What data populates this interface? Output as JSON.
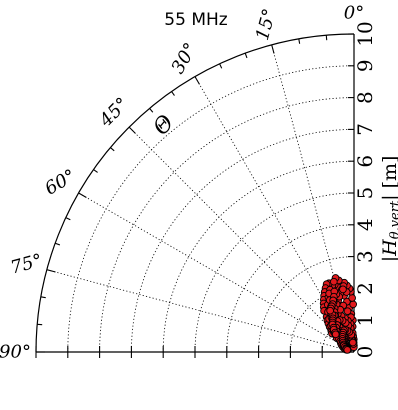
{
  "chart_data": {
    "type": "scatter",
    "projection": "polar-quadrant",
    "title": "55 MHz",
    "angular_axis": {
      "label": "Θ",
      "unit": "degrees",
      "range": [
        0,
        90
      ],
      "ticks": [
        0,
        15,
        30,
        45,
        60,
        75,
        90
      ],
      "tick_labels": [
        "0°",
        "15°",
        "30°",
        "45°",
        "60°",
        "75°",
        "90°"
      ],
      "minor_step": 5
    },
    "radial_axis": {
      "label_prefix": "|",
      "label_italic": "H",
      "label_subscript": "θ,vert",
      "label_suffix": "| [m]",
      "range": [
        0,
        10
      ],
      "ticks": [
        0,
        1,
        2,
        3,
        4,
        5,
        6,
        7,
        8,
        9,
        10
      ],
      "tick_labels": [
        "0",
        "1",
        "2",
        "3",
        "4",
        "5",
        "6",
        "7",
        "8",
        "9",
        "10"
      ]
    },
    "grid": true,
    "marker": {
      "color": "#e0191d",
      "edgecolor": "#000000"
    },
    "series": [
      {
        "points_theta_r": [
          [
            1,
            0.4
          ],
          [
            3,
            0.5
          ],
          [
            6,
            0.6
          ],
          [
            10,
            0.7
          ],
          [
            14,
            0.8
          ],
          [
            18,
            0.8
          ],
          [
            22,
            0.9
          ],
          [
            26,
            0.9
          ],
          [
            30,
            0.9
          ],
          [
            34,
            0.8
          ],
          [
            38,
            0.8
          ],
          [
            42,
            0.7
          ],
          [
            46,
            0.6
          ],
          [
            50,
            0.5
          ],
          [
            54,
            0.5
          ],
          [
            58,
            0.4
          ],
          [
            62,
            0.35
          ],
          [
            66,
            0.3
          ],
          [
            70,
            0.3
          ],
          [
            74,
            0.25
          ],
          [
            2,
            1.0
          ],
          [
            4,
            1.2
          ],
          [
            6,
            1.4
          ],
          [
            8,
            1.6
          ],
          [
            10,
            1.8
          ],
          [
            12,
            2.0
          ],
          [
            14,
            2.1
          ],
          [
            16,
            2.2
          ],
          [
            18,
            2.2
          ],
          [
            20,
            2.3
          ],
          [
            22,
            2.3
          ],
          [
            24,
            2.2
          ],
          [
            26,
            2.1
          ],
          [
            28,
            2.0
          ],
          [
            30,
            1.9
          ],
          [
            32,
            1.8
          ],
          [
            34,
            1.7
          ],
          [
            36,
            1.6
          ],
          [
            38,
            1.4
          ],
          [
            40,
            1.3
          ],
          [
            42,
            1.2
          ],
          [
            44,
            1.1
          ],
          [
            46,
            1.0
          ],
          [
            48,
            0.95
          ],
          [
            50,
            0.9
          ],
          [
            5,
            1.1
          ],
          [
            9,
            1.3
          ],
          [
            13,
            1.5
          ],
          [
            17,
            1.7
          ],
          [
            21,
            1.9
          ],
          [
            25,
            1.9
          ],
          [
            29,
            1.7
          ],
          [
            33,
            1.5
          ],
          [
            37,
            1.3
          ],
          [
            41,
            1.1
          ],
          [
            45,
            0.9
          ],
          [
            3,
            0.8
          ],
          [
            7,
            0.9
          ],
          [
            11,
            1.0
          ],
          [
            15,
            1.1
          ],
          [
            19,
            1.2
          ],
          [
            23,
            1.3
          ],
          [
            27,
            1.3
          ],
          [
            31,
            1.2
          ],
          [
            35,
            1.1
          ],
          [
            39,
            1.0
          ],
          [
            43,
            0.9
          ],
          [
            47,
            0.8
          ],
          [
            51,
            0.7
          ],
          [
            2,
            0.3
          ],
          [
            5,
            0.35
          ],
          [
            8,
            0.4
          ],
          [
            12,
            0.45
          ],
          [
            16,
            0.5
          ],
          [
            20,
            0.55
          ],
          [
            24,
            0.6
          ],
          [
            28,
            0.6
          ],
          [
            32,
            0.55
          ],
          [
            36,
            0.5
          ],
          [
            40,
            0.45
          ],
          [
            44,
            0.4
          ],
          [
            48,
            0.35
          ],
          [
            52,
            0.3
          ],
          [
            56,
            0.3
          ],
          [
            60,
            0.25
          ],
          [
            64,
            0.2
          ],
          [
            68,
            0.2
          ],
          [
            1,
            1.5
          ],
          [
            2,
            1.7
          ],
          [
            3,
            1.9
          ],
          [
            4,
            2.0
          ],
          [
            6,
            2.1
          ],
          [
            8,
            2.2
          ],
          [
            9,
            2.1
          ],
          [
            11,
            2.0
          ],
          [
            13,
            1.9
          ],
          [
            15,
            1.8
          ],
          [
            17,
            1.9
          ],
          [
            19,
            2.0
          ],
          [
            21,
            2.1
          ],
          [
            23,
            2.0
          ],
          [
            25,
            1.8
          ],
          [
            27,
            1.6
          ],
          [
            29,
            1.5
          ],
          [
            31,
            1.4
          ],
          [
            33,
            1.3
          ],
          [
            4,
            0.6
          ],
          [
            8,
            0.75
          ],
          [
            12,
            0.85
          ],
          [
            16,
            0.95
          ],
          [
            20,
            1.05
          ],
          [
            24,
            1.1
          ],
          [
            28,
            1.1
          ],
          [
            32,
            1.0
          ],
          [
            36,
            0.95
          ],
          [
            40,
            0.85
          ],
          [
            44,
            0.75
          ],
          [
            48,
            0.65
          ],
          [
            52,
            0.55
          ],
          [
            56,
            0.5
          ],
          [
            60,
            0.45
          ],
          [
            64,
            0.4
          ],
          [
            68,
            0.35
          ],
          [
            72,
            0.3
          ],
          [
            18,
            1.4
          ],
          [
            20,
            1.6
          ],
          [
            22,
            1.7
          ],
          [
            24,
            1.5
          ],
          [
            26,
            1.4
          ],
          [
            28,
            1.3
          ],
          [
            30,
            1.35
          ],
          [
            32,
            1.25
          ],
          [
            34,
            1.2
          ],
          [
            36,
            1.15
          ],
          [
            38,
            1.1
          ],
          [
            40,
            1.0
          ],
          [
            42,
            0.95
          ],
          [
            44,
            0.85
          ],
          [
            46,
            0.8
          ],
          [
            7,
            1.9
          ],
          [
            10,
            2.0
          ],
          [
            12,
            2.3
          ],
          [
            14,
            2.4
          ],
          [
            16,
            2.3
          ],
          [
            18,
            2.0
          ],
          [
            20,
            1.85
          ],
          [
            22,
            1.75
          ],
          [
            24,
            1.65
          ],
          [
            26,
            1.6
          ],
          [
            28,
            1.55
          ],
          [
            30,
            1.5
          ],
          [
            1,
            0.2
          ],
          [
            2,
            0.15
          ],
          [
            4,
            0.25
          ],
          [
            7,
            0.3
          ],
          [
            9,
            0.55
          ],
          [
            13,
            0.65
          ],
          [
            17,
            0.7
          ],
          [
            21,
            0.75
          ],
          [
            25,
            0.75
          ],
          [
            29,
            0.7
          ],
          [
            33,
            0.65
          ],
          [
            37,
            0.6
          ],
          [
            41,
            0.55
          ],
          [
            45,
            0.5
          ],
          [
            49,
            0.45
          ],
          [
            53,
            0.4
          ],
          [
            57,
            0.38
          ],
          [
            61,
            0.33
          ],
          [
            65,
            0.28
          ],
          [
            69,
            0.26
          ],
          [
            73,
            0.22
          ]
        ]
      }
    ]
  }
}
